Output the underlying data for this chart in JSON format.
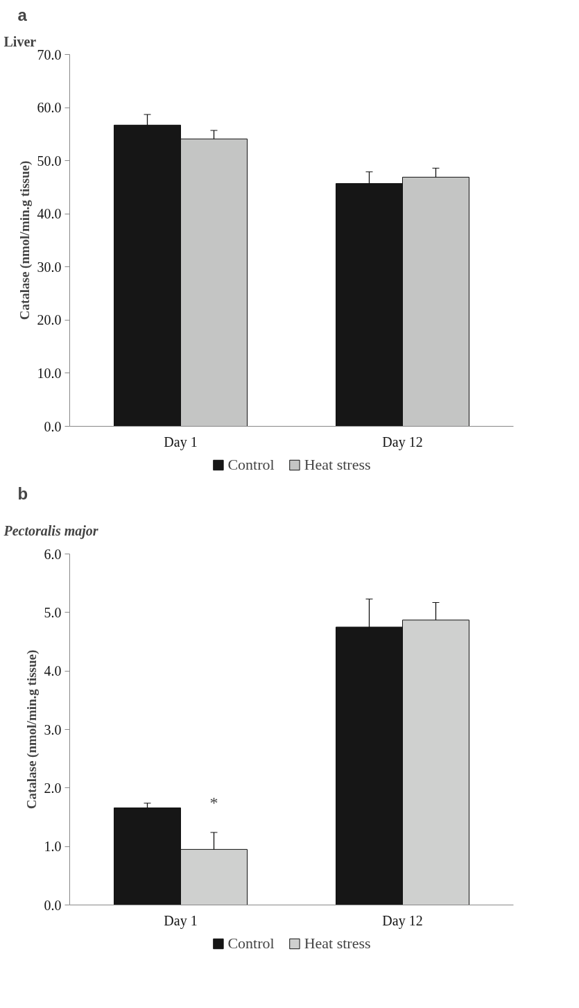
{
  "chart_data": [
    {
      "type": "bar",
      "title": "a",
      "subtitle": "Liver",
      "ylabel": "Catalase (nmol/min.g tissue)",
      "categories": [
        "Day 1",
        "Day 12"
      ],
      "series": [
        {
          "name": "Control",
          "color": "#161616",
          "values": [
            56.7,
            45.7
          ],
          "errors": [
            2.0,
            2.2
          ]
        },
        {
          "name": "Heat stress",
          "color": "#c4c5c4",
          "values": [
            54.1,
            46.9
          ],
          "errors": [
            1.6,
            1.7
          ]
        }
      ],
      "ylim": [
        0,
        70
      ],
      "yticks": [
        {
          "value": 0,
          "label": "0.0"
        },
        {
          "value": 10,
          "label": "10.0"
        },
        {
          "value": 20,
          "label": "20.0"
        },
        {
          "value": 30,
          "label": "30.0"
        },
        {
          "value": 40,
          "label": "40.0"
        },
        {
          "value": 50,
          "label": "50.0"
        },
        {
          "value": 60,
          "label": "60.0"
        },
        {
          "value": 70,
          "label": "70.0"
        }
      ],
      "grid": false,
      "legend": "bottom"
    },
    {
      "type": "bar",
      "title": "b",
      "subtitle": "Pectoralis major",
      "ylabel": "Catalase (nmol/min.g tissue)",
      "categories": [
        "Day 1",
        "Day 12"
      ],
      "series": [
        {
          "name": "Control",
          "color": "#161616",
          "values": [
            1.66,
            4.75
          ],
          "errors": [
            0.08,
            0.48
          ]
        },
        {
          "name": "Heat stress",
          "color": "#cfd0cf",
          "values": [
            0.95,
            4.87
          ],
          "errors": [
            0.29,
            0.3
          ]
        }
      ],
      "ylim": [
        0,
        6
      ],
      "yticks": [
        {
          "value": 0,
          "label": "0.0"
        },
        {
          "value": 1,
          "label": "1.0"
        },
        {
          "value": 2,
          "label": "2.0"
        },
        {
          "value": 3,
          "label": "3.0"
        },
        {
          "value": 4,
          "label": "4.0"
        },
        {
          "value": 5,
          "label": "5.0"
        },
        {
          "value": 6,
          "label": "6.0"
        }
      ],
      "annotations": [
        {
          "text": "*",
          "x": "Day 1",
          "y": 1.6
        }
      ],
      "grid": false,
      "legend": "bottom"
    }
  ]
}
